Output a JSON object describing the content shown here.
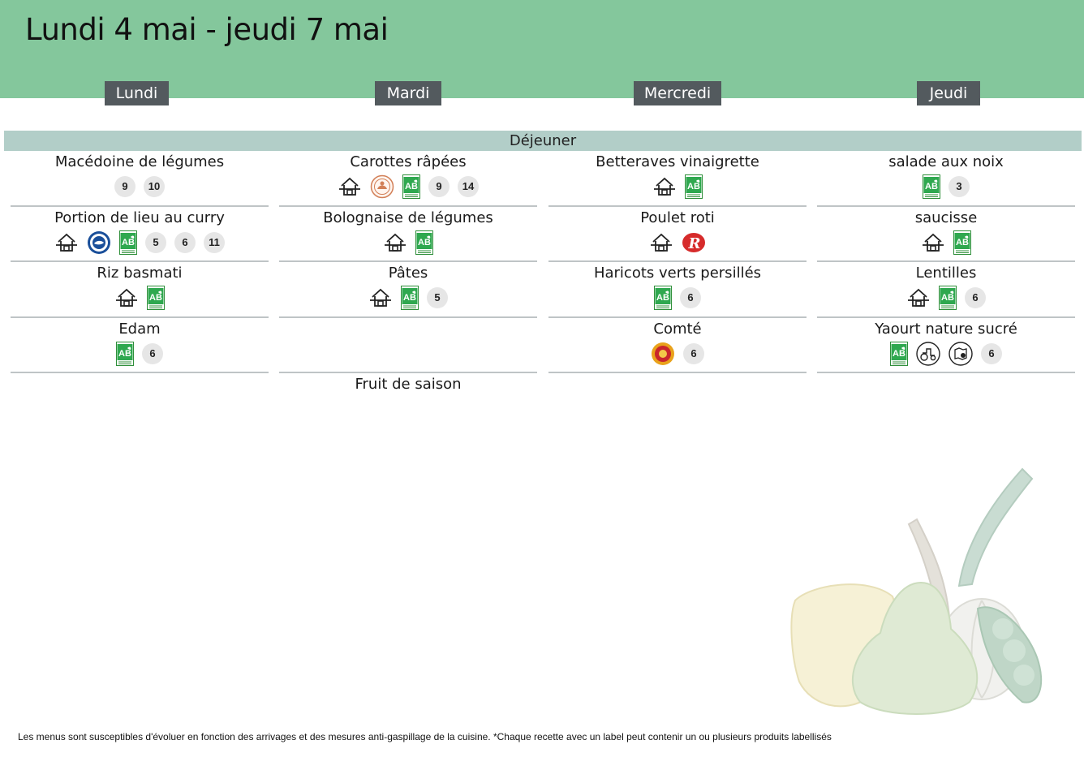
{
  "title": "Lundi 4 mai - jeudi 7 mai",
  "meal": "Déjeuner",
  "days": [
    {
      "name": "Lundi",
      "dishes": [
        {
          "name": "Macédoine de légumes",
          "badges": [
            {
              "kind": "allergen",
              "value": "9"
            },
            {
              "kind": "allergen",
              "value": "10"
            }
          ]
        },
        {
          "name": "Portion de lieu au curry",
          "badges": [
            {
              "kind": "label",
              "icon": "house-made-icon"
            },
            {
              "kind": "label",
              "icon": "msc-fishing-label-icon"
            },
            {
              "kind": "label",
              "icon": "ab-organic-label-icon"
            },
            {
              "kind": "allergen",
              "value": "5"
            },
            {
              "kind": "allergen",
              "value": "6"
            },
            {
              "kind": "allergen",
              "value": "11"
            }
          ]
        },
        {
          "name": "Riz basmati",
          "badges": [
            {
              "kind": "label",
              "icon": "house-made-icon"
            },
            {
              "kind": "label",
              "icon": "ab-organic-label-icon"
            }
          ]
        },
        {
          "name": "Edam",
          "badges": [
            {
              "kind": "label",
              "icon": "ab-organic-label-icon"
            },
            {
              "kind": "allergen",
              "value": "6"
            }
          ]
        }
      ]
    },
    {
      "name": "Mardi",
      "dishes": [
        {
          "name": "Carottes râpées",
          "badges": [
            {
              "kind": "label",
              "icon": "house-made-icon"
            },
            {
              "kind": "label",
              "icon": "local-origin-label-icon"
            },
            {
              "kind": "label",
              "icon": "ab-organic-label-icon"
            },
            {
              "kind": "allergen",
              "value": "9"
            },
            {
              "kind": "allergen",
              "value": "14"
            }
          ]
        },
        {
          "name": "Bolognaise de légumes",
          "badges": [
            {
              "kind": "label",
              "icon": "house-made-icon"
            },
            {
              "kind": "label",
              "icon": "ab-organic-label-icon"
            }
          ]
        },
        {
          "name": "Pâtes",
          "badges": [
            {
              "kind": "label",
              "icon": "house-made-icon"
            },
            {
              "kind": "label",
              "icon": "ab-organic-label-icon"
            },
            {
              "kind": "allergen",
              "value": "5"
            }
          ]
        },
        {
          "name": "",
          "badges": []
        },
        {
          "name": "Fruit de saison",
          "badges": []
        }
      ]
    },
    {
      "name": "Mercredi",
      "dishes": [
        {
          "name": "Betteraves vinaigrette",
          "badges": [
            {
              "kind": "label",
              "icon": "house-made-icon"
            },
            {
              "kind": "label",
              "icon": "ab-organic-label-icon"
            }
          ]
        },
        {
          "name": "Poulet roti",
          "badges": [
            {
              "kind": "label",
              "icon": "house-made-icon"
            },
            {
              "kind": "label",
              "icon": "label-rouge-icon"
            }
          ]
        },
        {
          "name": "Haricots verts persillés",
          "badges": [
            {
              "kind": "label",
              "icon": "ab-organic-label-icon"
            },
            {
              "kind": "allergen",
              "value": "6"
            }
          ]
        },
        {
          "name": "Comté",
          "badges": [
            {
              "kind": "label",
              "icon": "aop-label-icon"
            },
            {
              "kind": "allergen",
              "value": "6"
            }
          ]
        }
      ]
    },
    {
      "name": "Jeudi",
      "dishes": [
        {
          "name": "salade aux noix",
          "badges": [
            {
              "kind": "label",
              "icon": "ab-organic-label-icon"
            },
            {
              "kind": "allergen",
              "value": "3"
            }
          ]
        },
        {
          "name": "saucisse",
          "badges": [
            {
              "kind": "label",
              "icon": "house-made-icon"
            },
            {
              "kind": "label",
              "icon": "ab-organic-label-icon"
            }
          ]
        },
        {
          "name": "Lentilles",
          "badges": [
            {
              "kind": "label",
              "icon": "house-made-icon"
            },
            {
              "kind": "label",
              "icon": "ab-organic-label-icon"
            },
            {
              "kind": "allergen",
              "value": "6"
            }
          ]
        },
        {
          "name": "Yaourt nature sucré",
          "badges": [
            {
              "kind": "label",
              "icon": "ab-organic-label-icon"
            },
            {
              "kind": "label",
              "icon": "farm-tractor-icon"
            },
            {
              "kind": "label",
              "icon": "regional-map-icon"
            },
            {
              "kind": "allergen",
              "value": "6"
            }
          ]
        }
      ]
    }
  ],
  "footnote": "Les menus sont susceptibles d'évoluer en fonction des arrivages et des mesures anti-gaspillage de la cuisine. *Chaque recette avec un label peut contenir un ou plusieurs produits labellisés",
  "colors": {
    "header": "#84c79c",
    "tab": "#535a5e",
    "meal_band": "#b2cec8",
    "separator": "#bfc4c6"
  }
}
